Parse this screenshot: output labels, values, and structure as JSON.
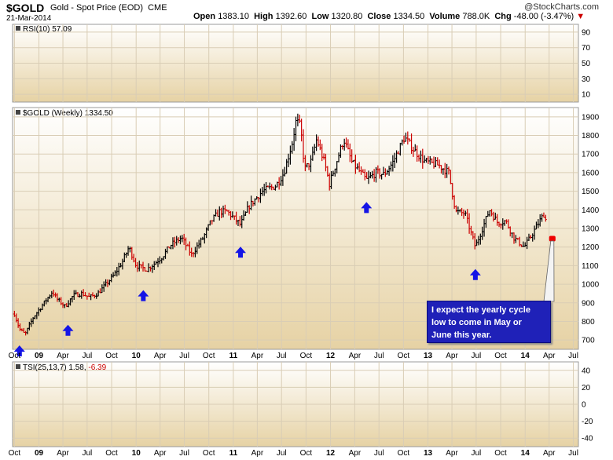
{
  "header": {
    "symbol": "$GOLD",
    "description": "Gold - Spot Price (EOD)",
    "exchange": "CME",
    "date": "21-Mar-2014",
    "open_label": "Open",
    "open": "1383.10",
    "high_label": "High",
    "high": "1392.60",
    "low_label": "Low",
    "low": "1320.80",
    "close_label": "Close",
    "close": "1334.50",
    "volume_label": "Volume",
    "volume": "788.0K",
    "chg_label": "Chg",
    "chg": "-48.00 (-3.47%)",
    "credit": "@StockCharts.com"
  },
  "colors": {
    "up": "#000000",
    "down": "#cc0000",
    "arrow": "#1414e6",
    "marker": "#ee0000",
    "panel_top": "#ffffff",
    "panel_bottom": "#e6d2a4"
  },
  "chart_data": [
    {
      "type": "line",
      "panel": "rsi",
      "label": "RSI(10) 57.09",
      "y_ticks": [
        90,
        70,
        50,
        30,
        10
      ],
      "ylim": [
        0,
        100
      ]
    },
    {
      "type": "candlestick",
      "panel": "price",
      "label": "$GOLD (Weekly) 1334.50",
      "y_ticks": [
        1900,
        1800,
        1700,
        1600,
        1500,
        1400,
        1300,
        1200,
        1100,
        1000,
        900,
        800,
        700
      ],
      "ylim": [
        650,
        1950
      ],
      "x_tick_labels": [
        "Oct",
        "09",
        "Apr",
        "Jul",
        "Oct",
        "10",
        "Apr",
        "Jul",
        "Oct",
        "11",
        "Apr",
        "Jul",
        "Oct",
        "12",
        "Apr",
        "Jul",
        "Oct",
        "13",
        "Apr",
        "Jul",
        "Oct",
        "14",
        "Apr",
        "Jul"
      ],
      "path_points": [
        [
          "2008-10-01",
          840
        ],
        [
          "2008-10-20",
          760
        ],
        [
          "2008-11-10",
          730
        ],
        [
          "2008-12-10",
          820
        ],
        [
          "2009-01-10",
          880
        ],
        [
          "2009-02-20",
          960
        ],
        [
          "2009-03-10",
          920
        ],
        [
          "2009-04-10",
          880
        ],
        [
          "2009-05-10",
          940
        ],
        [
          "2009-06-10",
          950
        ],
        [
          "2009-07-10",
          930
        ],
        [
          "2009-08-10",
          950
        ],
        [
          "2009-09-10",
          1000
        ],
        [
          "2009-10-10",
          1050
        ],
        [
          "2009-11-10",
          1120
        ],
        [
          "2009-12-05",
          1200
        ],
        [
          "2010-01-01",
          1100
        ],
        [
          "2010-02-10",
          1080
        ],
        [
          "2010-03-10",
          1110
        ],
        [
          "2010-04-10",
          1150
        ],
        [
          "2010-05-10",
          1210
        ],
        [
          "2010-06-20",
          1250
        ],
        [
          "2010-07-28",
          1160
        ],
        [
          "2010-09-10",
          1250
        ],
        [
          "2010-10-10",
          1340
        ],
        [
          "2010-11-10",
          1390
        ],
        [
          "2010-12-10",
          1390
        ],
        [
          "2011-01-28",
          1320
        ],
        [
          "2011-03-01",
          1420
        ],
        [
          "2011-04-20",
          1500
        ],
        [
          "2011-06-10",
          1530
        ],
        [
          "2011-07-10",
          1600
        ],
        [
          "2011-08-10",
          1760
        ],
        [
          "2011-08-25",
          1880
        ],
        [
          "2011-09-10",
          1850
        ],
        [
          "2011-09-26",
          1620
        ],
        [
          "2011-10-20",
          1660
        ],
        [
          "2011-11-10",
          1780
        ],
        [
          "2011-12-10",
          1650
        ],
        [
          "2011-12-28",
          1540
        ],
        [
          "2012-02-20",
          1780
        ],
        [
          "2012-03-20",
          1660
        ],
        [
          "2012-05-15",
          1560
        ],
        [
          "2012-06-20",
          1600
        ],
        [
          "2012-07-20",
          1590
        ],
        [
          "2012-08-20",
          1650
        ],
        [
          "2012-10-05",
          1790
        ],
        [
          "2012-11-10",
          1720
        ],
        [
          "2012-12-20",
          1660
        ],
        [
          "2013-02-10",
          1640
        ],
        [
          "2013-03-20",
          1600
        ],
        [
          "2013-04-15",
          1390
        ],
        [
          "2013-05-20",
          1380
        ],
        [
          "2013-06-28",
          1200
        ],
        [
          "2013-08-20",
          1400
        ],
        [
          "2013-09-20",
          1330
        ],
        [
          "2013-10-20",
          1340
        ],
        [
          "2013-11-20",
          1250
        ],
        [
          "2013-12-28",
          1200
        ],
        [
          "2014-01-20",
          1250
        ],
        [
          "2014-02-20",
          1330
        ],
        [
          "2014-03-14",
          1380
        ],
        [
          "2014-03-21",
          1334.5
        ]
      ],
      "blue_arrow_dates": [
        "2008-10-20",
        "2009-04-20",
        "2010-01-28",
        "2011-01-28",
        "2012-05-15",
        "2013-06-28"
      ],
      "projection": {
        "start": "2014-04-01",
        "end": "2014-04-25",
        "value": 1245
      },
      "annotation": {
        "line1": "I expect the yearly cycle",
        "line2": "low to come in May or",
        "line3": "June this year."
      }
    },
    {
      "type": "line",
      "panel": "tsi",
      "label": "TSI(25,13,7) 1.58,",
      "label_neg": "-6.39",
      "y_ticks": [
        40,
        20,
        0,
        -20,
        -40
      ],
      "ylim": [
        -50,
        50
      ]
    }
  ]
}
